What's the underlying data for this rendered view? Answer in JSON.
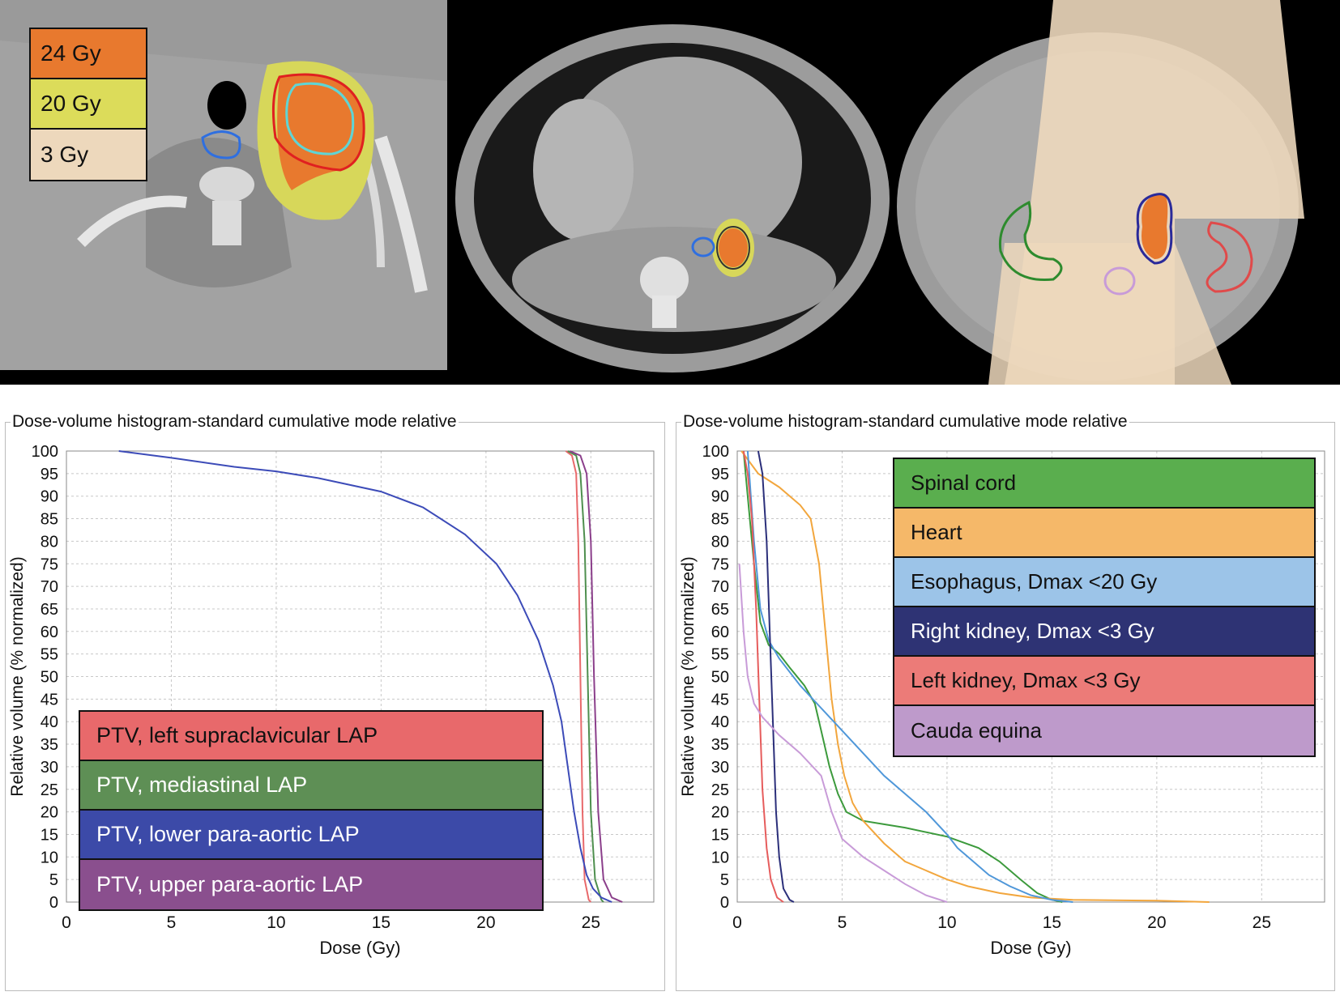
{
  "dose_legend": [
    {
      "label": "24 Gy",
      "color": "#E8792E"
    },
    {
      "label": "20 Gy",
      "color": "#DCDC5A"
    },
    {
      "label": "3 Gy",
      "color": "#EDD8BC"
    }
  ],
  "chart_data": [
    {
      "type": "line",
      "title": "Dose-volume histogram-standard cumulative mode relative",
      "xlabel": "Dose (Gy)",
      "ylabel": "Relative volume (% normalized)",
      "xlim": [
        0,
        28
      ],
      "ylim": [
        0,
        100
      ],
      "xticks": [
        0,
        5,
        10,
        15,
        20,
        25
      ],
      "yticks": [
        0,
        5,
        10,
        15,
        20,
        25,
        30,
        35,
        40,
        45,
        50,
        55,
        60,
        65,
        70,
        75,
        80,
        85,
        90,
        95,
        100
      ],
      "grid": true,
      "legend_position": "bottom-left",
      "series": [
        {
          "name": "PTV, left supraclavicular LAP",
          "color": "#E8696B",
          "points": [
            [
              23.8,
              100
            ],
            [
              24.1,
              99
            ],
            [
              24.3,
              95
            ],
            [
              24.4,
              80
            ],
            [
              24.5,
              50
            ],
            [
              24.6,
              20
            ],
            [
              24.7,
              5
            ],
            [
              24.9,
              0.5
            ],
            [
              25.0,
              0
            ]
          ]
        },
        {
          "name": "PTV, mediastinal LAP",
          "color": "#4E8F4E",
          "points": [
            [
              23.9,
              100
            ],
            [
              24.3,
              99
            ],
            [
              24.5,
              95
            ],
            [
              24.7,
              80
            ],
            [
              24.85,
              50
            ],
            [
              25.0,
              20
            ],
            [
              25.2,
              5
            ],
            [
              25.5,
              0.5
            ],
            [
              25.6,
              0
            ]
          ]
        },
        {
          "name": "PTV, lower para-aortic LAP",
          "color": "#3C4BB8",
          "points": [
            [
              2.5,
              100
            ],
            [
              5,
              98.5
            ],
            [
              8,
              96.5
            ],
            [
              10,
              95.5
            ],
            [
              12,
              94
            ],
            [
              15,
              91
            ],
            [
              17,
              87.5
            ],
            [
              19,
              81.5
            ],
            [
              20.5,
              75
            ],
            [
              21.5,
              68
            ],
            [
              22.5,
              58
            ],
            [
              23.2,
              48
            ],
            [
              23.6,
              40
            ],
            [
              23.9,
              30
            ],
            [
              24.2,
              20
            ],
            [
              24.5,
              12
            ],
            [
              24.8,
              6
            ],
            [
              25.1,
              3
            ],
            [
              25.5,
              1
            ],
            [
              26,
              0
            ]
          ]
        },
        {
          "name": "PTV, upper para-aortic LAP",
          "color": "#8B3F8B",
          "points": [
            [
              24.0,
              100
            ],
            [
              24.5,
              99
            ],
            [
              24.8,
              95
            ],
            [
              25.0,
              80
            ],
            [
              25.15,
              50
            ],
            [
              25.35,
              20
            ],
            [
              25.6,
              5
            ],
            [
              26.0,
              1
            ],
            [
              26.5,
              0
            ]
          ]
        }
      ]
    },
    {
      "type": "line",
      "title": "Dose-volume histogram-standard cumulative mode relative",
      "xlabel": "Dose (Gy)",
      "ylabel": "Relative volume (% normalized)",
      "xlim": [
        0,
        28
      ],
      "ylim": [
        0,
        100
      ],
      "xticks": [
        0,
        5,
        10,
        15,
        20,
        25
      ],
      "yticks": [
        0,
        5,
        10,
        15,
        20,
        25,
        30,
        35,
        40,
        45,
        50,
        55,
        60,
        65,
        70,
        75,
        80,
        85,
        90,
        95,
        100
      ],
      "grid": true,
      "legend_position": "top-right",
      "series": [
        {
          "name": "Spinal cord",
          "color": "#3C9A3C",
          "points": [
            [
              0.3,
              100
            ],
            [
              0.5,
              90
            ],
            [
              0.8,
              75
            ],
            [
              1.1,
              62
            ],
            [
              1.5,
              57
            ],
            [
              2,
              55
            ],
            [
              2.5,
              52
            ],
            [
              3.2,
              48
            ],
            [
              3.7,
              44
            ],
            [
              4,
              38
            ],
            [
              4.4,
              30
            ],
            [
              4.8,
              24
            ],
            [
              5.2,
              20
            ],
            [
              6,
              18
            ],
            [
              8,
              16.5
            ],
            [
              10,
              14.5
            ],
            [
              11.5,
              12
            ],
            [
              12.5,
              9
            ],
            [
              13.5,
              5
            ],
            [
              14.3,
              2
            ],
            [
              15,
              0.5
            ],
            [
              15.5,
              0
            ]
          ]
        },
        {
          "name": "Heart",
          "color": "#F2A63D",
          "points": [
            [
              0.2,
              100
            ],
            [
              1,
              95
            ],
            [
              2,
              92
            ],
            [
              3,
              88
            ],
            [
              3.5,
              85
            ],
            [
              3.9,
              75
            ],
            [
              4.2,
              60
            ],
            [
              4.5,
              45
            ],
            [
              4.8,
              35
            ],
            [
              5.1,
              28
            ],
            [
              5.5,
              22
            ],
            [
              6,
              18
            ],
            [
              7,
              13
            ],
            [
              8,
              9
            ],
            [
              9,
              7
            ],
            [
              10,
              5
            ],
            [
              11,
              3.5
            ],
            [
              12.5,
              2
            ],
            [
              14,
              1
            ],
            [
              16,
              0.5
            ],
            [
              20,
              0.3
            ],
            [
              22.5,
              0
            ]
          ]
        },
        {
          "name": "Esophagus, Dmax <20 Gy",
          "color": "#4F97D9",
          "points": [
            [
              0.5,
              100
            ],
            [
              0.8,
              80
            ],
            [
              1.1,
              65
            ],
            [
              1.5,
              58
            ],
            [
              2,
              54
            ],
            [
              3,
              48
            ],
            [
              4,
              43
            ],
            [
              5,
              38
            ],
            [
              6,
              33
            ],
            [
              7,
              28
            ],
            [
              8,
              24
            ],
            [
              9,
              20
            ],
            [
              10,
              15
            ],
            [
              10.5,
              12
            ],
            [
              11,
              10
            ],
            [
              12,
              6
            ],
            [
              13,
              3.5
            ],
            [
              14,
              1.5
            ],
            [
              15,
              0.5
            ],
            [
              16,
              0
            ]
          ]
        },
        {
          "name": "Right kidney, Dmax <3 Gy",
          "color": "#2B2F7A",
          "points": [
            [
              1.0,
              100
            ],
            [
              1.2,
              95
            ],
            [
              1.4,
              80
            ],
            [
              1.55,
              60
            ],
            [
              1.7,
              40
            ],
            [
              1.85,
              20
            ],
            [
              2.0,
              10
            ],
            [
              2.2,
              3
            ],
            [
              2.5,
              0.5
            ],
            [
              2.7,
              0
            ]
          ]
        },
        {
          "name": "Left kidney, Dmax <3 Gy",
          "color": "#E65C5C",
          "points": [
            [
              0.3,
              100
            ],
            [
              0.5,
              95
            ],
            [
              0.7,
              85
            ],
            [
              0.9,
              65
            ],
            [
              1.05,
              45
            ],
            [
              1.2,
              25
            ],
            [
              1.4,
              12
            ],
            [
              1.6,
              5
            ],
            [
              1.9,
              1
            ],
            [
              2.2,
              0
            ]
          ]
        },
        {
          "name": "Cauda equina",
          "color": "#C89BD8",
          "points": [
            [
              0.1,
              75
            ],
            [
              0.3,
              60
            ],
            [
              0.5,
              50
            ],
            [
              0.8,
              44
            ],
            [
              1.2,
              41
            ],
            [
              2,
              37
            ],
            [
              3,
              33
            ],
            [
              4,
              28
            ],
            [
              4.5,
              20
            ],
            [
              5,
              14
            ],
            [
              6,
              10
            ],
            [
              7,
              7
            ],
            [
              8,
              4
            ],
            [
              9,
              1.5
            ],
            [
              10,
              0
            ]
          ]
        }
      ]
    }
  ]
}
